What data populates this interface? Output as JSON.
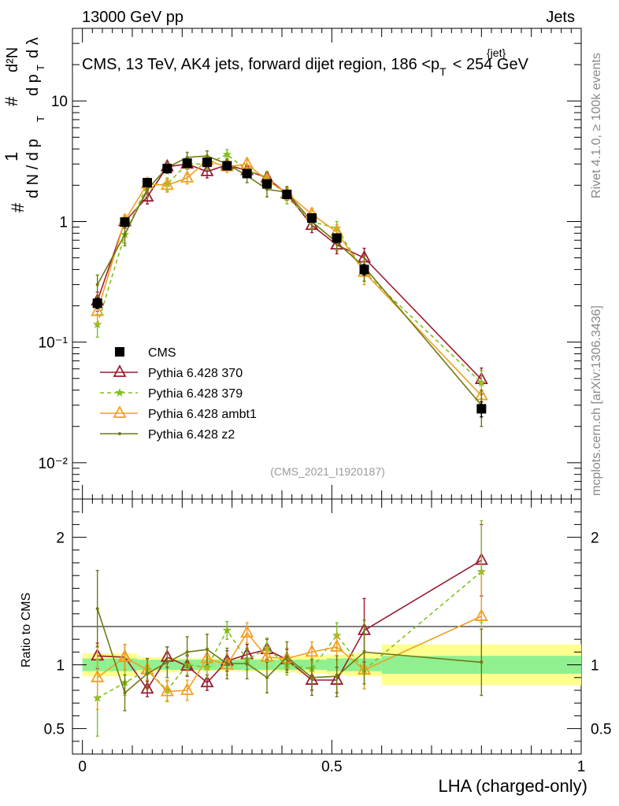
{
  "header": {
    "left": "13000 GeV pp",
    "right": "Jets"
  },
  "chart_data": [
    {
      "type": "line",
      "panel": "main",
      "title_prefix": "CMS, 13 TeV, AK4 jets, forward dijet region, 186 <p",
      "title_sub": "T",
      "title_sup": "{jet}",
      "title_suffix": "< 254 GeV",
      "ylabel": "1/(dN/dpT) d²N/(dpT dλ)",
      "ylabel_parts": {
        "hash": "#",
        "one": "1",
        "dN": "d N / d p",
        "T": "T",
        "d2N": "d²N",
        "dp": "d p",
        "dlambda": "d λ"
      },
      "yscale": "log",
      "ylim": [
        0.005,
        40
      ],
      "yticks": [
        "10⁻²",
        "10⁻¹",
        "1",
        "10"
      ],
      "ytick_values": [
        0.01,
        0.1,
        1,
        10
      ],
      "xlim": [
        -0.02,
        1.0
      ],
      "x": [
        0.03,
        0.085,
        0.13,
        0.17,
        0.21,
        0.25,
        0.29,
        0.33,
        0.37,
        0.41,
        0.46,
        0.51,
        0.565,
        0.8
      ],
      "series": [
        {
          "name": "CMS",
          "color": "#000000",
          "marker": "square",
          "dashed": false,
          "line": false,
          "values": [
            0.21,
            0.99,
            2.1,
            2.75,
            3.05,
            3.1,
            2.9,
            2.5,
            2.05,
            1.68,
            1.07,
            0.73,
            0.4,
            0.028
          ],
          "errors": [
            0.02,
            0.08,
            0.15,
            0.15,
            0.15,
            0.15,
            0.15,
            0.12,
            0.12,
            0.1,
            0.07,
            0.06,
            0.04,
            0.004
          ]
        },
        {
          "name": "Pythia 6.428 370",
          "color": "#9b1b30",
          "marker": "triangle-open",
          "dashed": false,
          "line": true,
          "values": [
            0.22,
            1.0,
            1.6,
            2.85,
            3.0,
            2.6,
            2.95,
            2.65,
            2.3,
            1.7,
            0.93,
            0.64,
            0.5,
            0.049
          ],
          "errors": [
            0.04,
            0.12,
            0.2,
            0.3,
            0.3,
            0.3,
            0.3,
            0.3,
            0.25,
            0.2,
            0.12,
            0.1,
            0.1,
            0.012
          ]
        },
        {
          "name": "Pythia 6.428 379",
          "color": "#80c020",
          "marker": "star",
          "dashed": true,
          "line": true,
          "values": [
            0.14,
            0.78,
            2.0,
            2.05,
            3.0,
            3.0,
            3.6,
            2.65,
            2.35,
            1.6,
            1.0,
            0.88,
            0.38,
            0.046
          ],
          "errors": [
            0.03,
            0.12,
            0.25,
            0.25,
            0.3,
            0.3,
            0.35,
            0.3,
            0.25,
            0.2,
            0.12,
            0.12,
            0.08,
            0.012
          ]
        },
        {
          "name": "Pythia 6.428 ambt1",
          "color": "#f0a020",
          "marker": "triangle-open",
          "dashed": false,
          "line": true,
          "values": [
            0.18,
            1.02,
            2.05,
            2.0,
            2.3,
            3.2,
            2.85,
            3.0,
            2.2,
            1.72,
            1.15,
            0.82,
            0.38,
            0.036
          ],
          "errors": [
            0.04,
            0.12,
            0.25,
            0.25,
            0.25,
            0.3,
            0.3,
            0.3,
            0.25,
            0.2,
            0.14,
            0.12,
            0.08,
            0.01
          ]
        },
        {
          "name": "Pythia 6.428 z2",
          "color": "#707a10",
          "marker": "dot",
          "dashed": false,
          "line": true,
          "values": [
            0.3,
            0.78,
            1.85,
            2.8,
            3.4,
            3.5,
            3.0,
            2.4,
            1.85,
            1.75,
            1.0,
            0.67,
            0.42,
            0.03
          ],
          "errors": [
            0.06,
            0.15,
            0.25,
            0.3,
            0.35,
            0.35,
            0.3,
            0.3,
            0.25,
            0.2,
            0.14,
            0.1,
            0.1,
            0.01
          ]
        }
      ],
      "annotation": "(CMS_2021_I1920187)"
    },
    {
      "type": "line",
      "panel": "ratio",
      "ylabel": "Ratio to CMS",
      "yscale": "linear",
      "ylim": [
        0.3,
        2.3
      ],
      "yticks": [
        "0.5",
        "1",
        "2"
      ],
      "ytick_values": [
        0.5,
        1,
        2
      ],
      "xlabel": "LHA (charged-only)",
      "xticks": [
        "0",
        "0.5",
        "1"
      ],
      "xtick_values": [
        0,
        0.5,
        1
      ],
      "xlim": [
        -0.02,
        1.0
      ],
      "bands": {
        "edges": [
          0.0,
          0.05,
          0.11,
          0.15,
          0.19,
          0.23,
          0.27,
          0.31,
          0.35,
          0.39,
          0.43,
          0.49,
          0.53,
          0.6,
          1.0
        ],
        "stat": [
          0.05,
          0.05,
          0.04,
          0.04,
          0.04,
          0.04,
          0.04,
          0.04,
          0.04,
          0.04,
          0.04,
          0.05,
          0.05,
          0.07
        ],
        "syst": [
          0.09,
          0.09,
          0.06,
          0.06,
          0.05,
          0.05,
          0.05,
          0.05,
          0.05,
          0.06,
          0.07,
          0.08,
          0.09,
          0.16
        ],
        "stat_color": "#90f090",
        "syst_color": "#ffff90"
      },
      "x": [
        0.03,
        0.085,
        0.13,
        0.17,
        0.21,
        0.25,
        0.29,
        0.33,
        0.37,
        0.41,
        0.46,
        0.51,
        0.565,
        0.8
      ],
      "series": [
        {
          "name": "Pythia 6.428 370",
          "color": "#9b1b30",
          "marker": "triangle-open",
          "dashed": false,
          "values": [
            1.07,
            1.06,
            0.81,
            1.06,
            0.99,
            0.86,
            1.03,
            1.08,
            1.12,
            1.04,
            0.88,
            0.88,
            1.27,
            1.82
          ],
          "errors": [
            0.1,
            0.1,
            0.06,
            0.08,
            0.08,
            0.06,
            0.08,
            0.08,
            0.08,
            0.08,
            0.08,
            0.1,
            0.25,
            0.28
          ]
        },
        {
          "name": "Pythia 6.428 379",
          "color": "#80c020",
          "marker": "star",
          "dashed": true,
          "values": [
            0.74,
            0.86,
            0.96,
            0.8,
            1.0,
            0.98,
            1.27,
            1.04,
            1.13,
            1.0,
            0.97,
            1.23,
            0.96,
            1.73
          ],
          "errors": [
            0.3,
            0.1,
            0.08,
            0.08,
            0.08,
            0.08,
            0.07,
            0.08,
            0.08,
            0.08,
            0.08,
            0.1,
            0.15,
            0.4
          ]
        },
        {
          "name": "Pythia 6.428 ambt1",
          "color": "#f0a020",
          "marker": "triangle-open",
          "dashed": false,
          "values": [
            0.9,
            1.06,
            0.96,
            0.79,
            0.8,
            1.05,
            1.0,
            1.25,
            1.06,
            1.05,
            1.1,
            1.14,
            0.96,
            1.38
          ],
          "errors": [
            0.25,
            0.1,
            0.08,
            0.08,
            0.08,
            0.08,
            0.08,
            0.08,
            0.08,
            0.08,
            0.08,
            0.1,
            0.15,
            0.35
          ]
        },
        {
          "name": "Pythia 6.428 z2",
          "color": "#707a10",
          "marker": "dot",
          "dashed": false,
          "values": [
            1.44,
            0.78,
            0.93,
            1.02,
            1.1,
            1.12,
            1.01,
            1.01,
            0.9,
            1.06,
            0.9,
            0.91,
            1.1,
            1.02
          ],
          "errors": [
            0.3,
            0.14,
            0.12,
            0.12,
            0.12,
            0.12,
            0.12,
            0.12,
            0.12,
            0.12,
            0.14,
            0.16,
            0.25,
            0.26
          ]
        }
      ]
    }
  ],
  "side_text": {
    "rivet": "Rivet 4.1.0, ≥ 100k events",
    "mcplots": "mcplots.cern.ch [arXiv:1306.3436]"
  }
}
